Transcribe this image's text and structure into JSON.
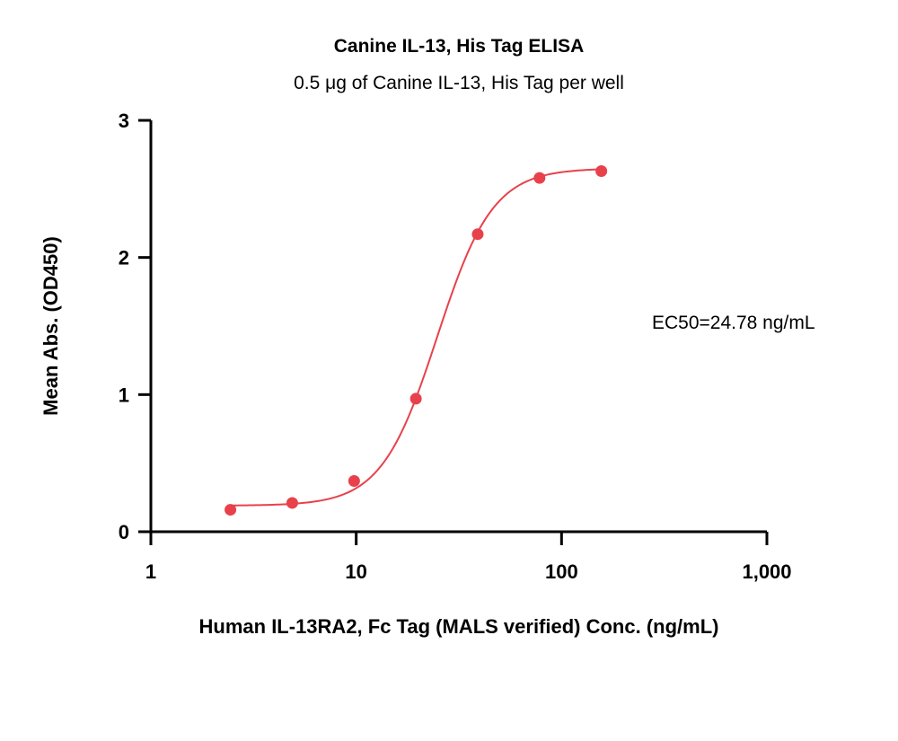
{
  "chart_data": {
    "type": "scatter",
    "title": "Canine IL-13, His Tag ELISA",
    "subtitle": "0.5 μg of Canine IL-13, His Tag per well",
    "xlabel": "Human IL-13RA2, Fc Tag (MALS verified) Conc. (ng/mL)",
    "ylabel": "Mean Abs. (OD450)",
    "x_scale": "log",
    "xlim": [
      1,
      1000
    ],
    "ylim": [
      0,
      3
    ],
    "x_ticks": [
      {
        "value": 1,
        "label": "1"
      },
      {
        "value": 10,
        "label": "10"
      },
      {
        "value": 100,
        "label": "100"
      },
      {
        "value": 1000,
        "label": "1,000"
      }
    ],
    "y_ticks": [
      {
        "value": 0,
        "label": "0"
      },
      {
        "value": 1,
        "label": "1"
      },
      {
        "value": 2,
        "label": "2"
      },
      {
        "value": 3,
        "label": "3"
      }
    ],
    "grid": false,
    "color": "#e8414b",
    "series": [
      {
        "points": [
          {
            "x": 2.44,
            "y": 0.16
          },
          {
            "x": 4.88,
            "y": 0.21
          },
          {
            "x": 9.77,
            "y": 0.37
          },
          {
            "x": 19.53,
            "y": 0.97
          },
          {
            "x": 39.06,
            "y": 2.17
          },
          {
            "x": 78.13,
            "y": 2.58
          },
          {
            "x": 156.25,
            "y": 2.63
          }
        ],
        "fit": {
          "model": "4PL",
          "bottom": 0.19,
          "top": 2.65,
          "ec50": 24.78,
          "hill": 3.2
        }
      }
    ],
    "annotation": "EC50=24.78 ng/mL"
  }
}
